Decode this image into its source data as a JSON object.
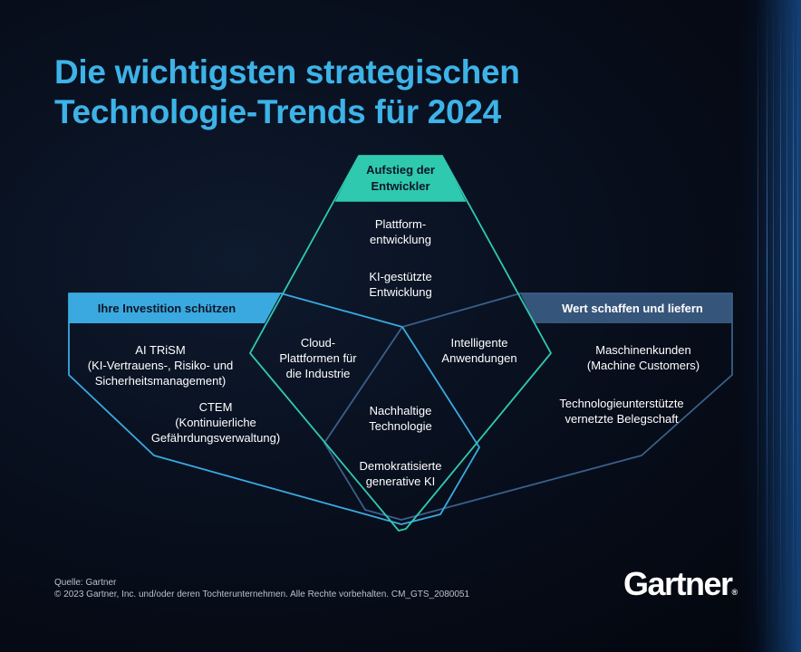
{
  "title": {
    "line1": "Die wichtigsten strategischen",
    "line2": "Technologie-Trends für 2024"
  },
  "themes": {
    "top": {
      "line1": "Aufstieg der",
      "line2": "Entwickler"
    },
    "left": "Ihre Investition schützen",
    "right": "Wert schaffen und liefern"
  },
  "trends": {
    "platform_engineering": {
      "line1": "Plattform-",
      "line2": "entwicklung"
    },
    "ai_augmented_dev": {
      "line1": "KI-gestützte",
      "line2": "Entwicklung"
    },
    "industry_cloud": {
      "line1": "Cloud-",
      "line2": "Plattformen für",
      "line3": "die Industrie"
    },
    "intelligent_apps": {
      "line1": "Intelligente",
      "line2": "Anwendungen"
    },
    "sustainable_tech": {
      "line1": "Nachhaltige",
      "line2": "Technologie"
    },
    "democratized_genai": {
      "line1": "Demokratisierte",
      "line2": "generative KI"
    },
    "ai_trism": {
      "line1": "AI TRiSM",
      "line2": "(KI-Vertrauens-, Risiko- und",
      "line3": "Sicherheitsmanagement)"
    },
    "ctem": {
      "line1": "CTEM",
      "line2": "(Kontinuierliche",
      "line3": "Gefährdungsverwaltung)"
    },
    "machine_customers": {
      "line1": "Maschinenkunden",
      "line2": "(Machine Customers)"
    },
    "augmented_workforce": {
      "line1": "Technologieunterstützte",
      "line2": "vernetzte Belegschaft"
    }
  },
  "footer": {
    "source": "Quelle: Gartner",
    "copyright": "© 2023 Gartner, Inc. und/oder deren Tochterunternehmen. Alle Rechte vorbehalten. CM_GTS_2080051"
  },
  "logo": {
    "text": "Gartner",
    "mark": "®"
  },
  "colors": {
    "title": "#3db3e8",
    "top_theme": "#2fc9b0",
    "left_theme": "#3aa9e0",
    "right_theme": "#36557a",
    "background": "#070d1a"
  }
}
